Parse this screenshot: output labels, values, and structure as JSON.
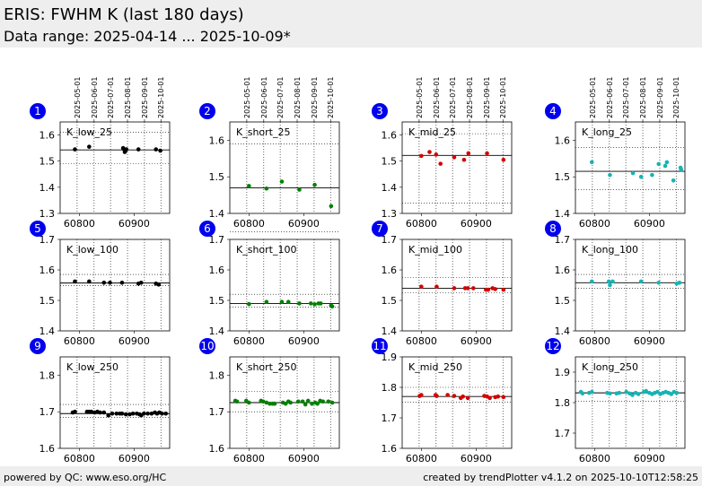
{
  "header": {
    "title": "ERIS: FWHM K (last 180 days)",
    "subtitle": "Data range: 2025-04-14 ... 2025-10-09*"
  },
  "footer": {
    "left": "powered by QC: www.eso.org/HC",
    "right": "created by trendPlotter v4.1.2 on 2025-10-10T12:58:25"
  },
  "date_ticks": [
    "2025-05-01",
    "2025-06-01",
    "2025-07-01",
    "2025-08-01",
    "2025-09-01",
    "2025-10-01"
  ],
  "chart_data": [
    {
      "type": "scatter",
      "index": "1",
      "label": "K_low_25",
      "color": "#000000",
      "xlim": [
        60765,
        60965
      ],
      "ylim": [
        1.3,
        1.65
      ],
      "xticks": [
        60800,
        60900
      ],
      "yticks": [
        1.3,
        1.4,
        1.5,
        1.6
      ],
      "ref": 1.543,
      "upper": 1.61,
      "lower": 1.49,
      "x": [
        60792,
        60818,
        60880,
        60882,
        60884,
        60883,
        60886,
        60908,
        60940,
        60948
      ],
      "y": [
        1.545,
        1.555,
        1.55,
        1.545,
        1.54,
        1.535,
        1.545,
        1.545,
        1.545,
        1.54
      ]
    },
    {
      "type": "scatter",
      "index": "2",
      "label": "K_short_25",
      "color": "#008000",
      "xlim": [
        60765,
        60965
      ],
      "ylim": [
        1.4,
        1.65
      ],
      "xticks": [
        60800,
        60900
      ],
      "yticks": [
        1.4,
        1.5,
        1.6
      ],
      "ref": 1.47,
      "upper": 1.59,
      "lower": 1.35,
      "x": [
        60800,
        60832,
        60860,
        60892,
        60920,
        60950
      ],
      "y": [
        1.475,
        1.468,
        1.487,
        1.465,
        1.478,
        1.42
      ]
    },
    {
      "type": "scatter",
      "index": "3",
      "label": "K_mid_25",
      "color": "#d40000",
      "xlim": [
        60765,
        60965
      ],
      "ylim": [
        1.3,
        1.65
      ],
      "xticks": [
        60800,
        60900
      ],
      "yticks": [
        1.3,
        1.4,
        1.5,
        1.6
      ],
      "ref": 1.522,
      "upper": 1.605,
      "lower": 1.34,
      "x": [
        60800,
        60815,
        60827,
        60835,
        60860,
        60878,
        60886,
        60920,
        60950
      ],
      "y": [
        1.52,
        1.535,
        1.525,
        1.49,
        1.515,
        1.505,
        1.53,
        1.53,
        1.505
      ]
    },
    {
      "type": "scatter",
      "index": "4",
      "label": "K_long_25",
      "color": "#17b3b3",
      "xlim": [
        60765,
        60965
      ],
      "ylim": [
        1.4,
        1.65
      ],
      "xticks": [
        60800,
        60900
      ],
      "yticks": [
        1.4,
        1.5,
        1.6
      ],
      "ref": 1.515,
      "upper": 1.58,
      "lower": 1.465,
      "x": [
        60795,
        60828,
        60870,
        60885,
        60905,
        60917,
        60929,
        60932,
        60944,
        60957,
        60958
      ],
      "y": [
        1.54,
        1.505,
        1.51,
        1.5,
        1.505,
        1.535,
        1.53,
        1.54,
        1.49,
        1.525,
        1.52
      ]
    },
    {
      "type": "scatter",
      "index": "5",
      "label": "K_low_100",
      "color": "#000000",
      "xlim": [
        60765,
        60965
      ],
      "ylim": [
        1.4,
        1.7
      ],
      "xticks": [
        60800,
        60900
      ],
      "yticks": [
        1.4,
        1.5,
        1.6,
        1.7
      ],
      "ref": 1.557,
      "upper": 1.585,
      "lower": 1.548,
      "x": [
        60792,
        60818,
        60845,
        60856,
        60878,
        60908,
        60913,
        60940,
        60945
      ],
      "y": [
        1.562,
        1.562,
        1.558,
        1.558,
        1.558,
        1.555,
        1.558,
        1.555,
        1.552
      ]
    },
    {
      "type": "scatter",
      "index": "6",
      "label": "K_short_100",
      "color": "#008000",
      "xlim": [
        60765,
        60965
      ],
      "ylim": [
        1.4,
        1.7
      ],
      "xticks": [
        60800,
        60900
      ],
      "yticks": [
        1.4,
        1.5,
        1.6,
        1.7
      ],
      "ref": 1.49,
      "upper": 1.52,
      "lower": 1.478,
      "x": [
        60800,
        60832,
        60860,
        60872,
        60892,
        60913,
        60920,
        60927,
        60931,
        60950,
        60952
      ],
      "y": [
        1.488,
        1.495,
        1.495,
        1.495,
        1.49,
        1.49,
        1.487,
        1.49,
        1.49,
        1.483,
        1.48
      ]
    },
    {
      "type": "scatter",
      "index": "7",
      "label": "K_mid_100",
      "color": "#d40000",
      "xlim": [
        60765,
        60965
      ],
      "ylim": [
        1.4,
        1.7
      ],
      "xticks": [
        60800,
        60900
      ],
      "yticks": [
        1.4,
        1.5,
        1.6,
        1.7
      ],
      "ref": 1.54,
      "upper": 1.575,
      "lower": 1.525,
      "x": [
        60800,
        60828,
        60860,
        60880,
        60885,
        60895,
        60918,
        60922,
        60930,
        60935,
        60950
      ],
      "y": [
        1.545,
        1.545,
        1.54,
        1.54,
        1.54,
        1.54,
        1.535,
        1.535,
        1.54,
        1.537,
        1.535
      ]
    },
    {
      "type": "scatter",
      "index": "8",
      "label": "K_long_100",
      "color": "#17b3b3",
      "xlim": [
        60765,
        60965
      ],
      "ylim": [
        1.4,
        1.7
      ],
      "xticks": [
        60800,
        60900
      ],
      "yticks": [
        1.4,
        1.5,
        1.6,
        1.7
      ],
      "ref": 1.558,
      "upper": 1.585,
      "lower": 1.54,
      "x": [
        60795,
        60826,
        60828,
        60833,
        60885,
        60917,
        60950,
        60955
      ],
      "y": [
        1.562,
        1.562,
        1.55,
        1.562,
        1.562,
        1.558,
        1.555,
        1.558
      ]
    },
    {
      "type": "scatter",
      "index": "9",
      "label": "K_low_250",
      "color": "#000000",
      "xlim": [
        60765,
        60965
      ],
      "ylim": [
        1.6,
        1.85
      ],
      "xticks": [
        60800,
        60900
      ],
      "yticks": [
        1.6,
        1.7,
        1.8
      ],
      "ref": 1.695,
      "upper": 1.72,
      "lower": 1.685,
      "x": [
        60788,
        60792,
        60814,
        60818,
        60822,
        60828,
        60833,
        60838,
        60845,
        60853,
        60860,
        60868,
        60874,
        60878,
        60885,
        60892,
        60898,
        60905,
        60910,
        60913,
        60918,
        60925,
        60932,
        60938,
        60942,
        60946,
        60951,
        60958
      ],
      "y": [
        1.698,
        1.7,
        1.7,
        1.7,
        1.7,
        1.698,
        1.7,
        1.698,
        1.698,
        1.69,
        1.695,
        1.695,
        1.695,
        1.695,
        1.693,
        1.693,
        1.695,
        1.695,
        1.693,
        1.69,
        1.695,
        1.695,
        1.695,
        1.698,
        1.695,
        1.698,
        1.695,
        1.695
      ]
    },
    {
      "type": "scatter",
      "index": "10",
      "label": "K_short_250",
      "color": "#008000",
      "xlim": [
        60765,
        60965
      ],
      "ylim": [
        1.6,
        1.85
      ],
      "xticks": [
        60800,
        60900
      ],
      "yticks": [
        1.6,
        1.7,
        1.8
      ],
      "ref": 1.725,
      "upper": 1.755,
      "lower": 1.7,
      "x": [
        60775,
        60778,
        60795,
        60800,
        60822,
        60826,
        60832,
        60838,
        60843,
        60847,
        60862,
        60867,
        60872,
        60876,
        60890,
        60898,
        60903,
        60908,
        60915,
        60921,
        60925,
        60930,
        60935,
        60945,
        60952
      ],
      "y": [
        1.73,
        1.728,
        1.73,
        1.725,
        1.73,
        1.728,
        1.725,
        1.722,
        1.722,
        1.722,
        1.725,
        1.722,
        1.728,
        1.725,
        1.728,
        1.728,
        1.72,
        1.73,
        1.722,
        1.725,
        1.722,
        1.73,
        1.728,
        1.728,
        1.725
      ]
    },
    {
      "type": "scatter",
      "index": "11",
      "label": "K_mid_250",
      "color": "#d40000",
      "xlim": [
        60765,
        60965
      ],
      "ylim": [
        1.6,
        1.9
      ],
      "xticks": [
        60800,
        60900
      ],
      "yticks": [
        1.6,
        1.7,
        1.8,
        1.9
      ],
      "ref": 1.77,
      "upper": 1.8,
      "lower": 1.752,
      "x": [
        60797,
        60800,
        60826,
        60828,
        60848,
        60860,
        60872,
        60876,
        60885,
        60915,
        60920,
        60925,
        60935,
        60940,
        60950
      ],
      "y": [
        1.772,
        1.775,
        1.775,
        1.772,
        1.775,
        1.772,
        1.765,
        1.77,
        1.765,
        1.772,
        1.77,
        1.765,
        1.768,
        1.77,
        1.768
      ]
    },
    {
      "type": "scatter",
      "index": "12",
      "label": "K_long_250",
      "color": "#17b3b3",
      "xlim": [
        60765,
        60965
      ],
      "ylim": [
        1.65,
        1.95
      ],
      "xticks": [
        60800,
        60900
      ],
      "yticks": [
        1.7,
        1.8,
        1.9
      ],
      "ref": 1.832,
      "upper": 1.87,
      "lower": 1.805,
      "x": [
        60775,
        60778,
        60790,
        60795,
        60823,
        60828,
        60840,
        60845,
        60858,
        60864,
        60869,
        60875,
        60880,
        60890,
        60894,
        60900,
        60905,
        60910,
        60915,
        60920,
        60925,
        60930,
        60935,
        60940,
        60945,
        60950
      ],
      "y": [
        1.835,
        1.83,
        1.832,
        1.835,
        1.832,
        1.83,
        1.83,
        1.832,
        1.835,
        1.83,
        1.825,
        1.832,
        1.828,
        1.835,
        1.838,
        1.832,
        1.828,
        1.832,
        1.835,
        1.828,
        1.832,
        1.835,
        1.832,
        1.828,
        1.835,
        1.832
      ]
    }
  ]
}
